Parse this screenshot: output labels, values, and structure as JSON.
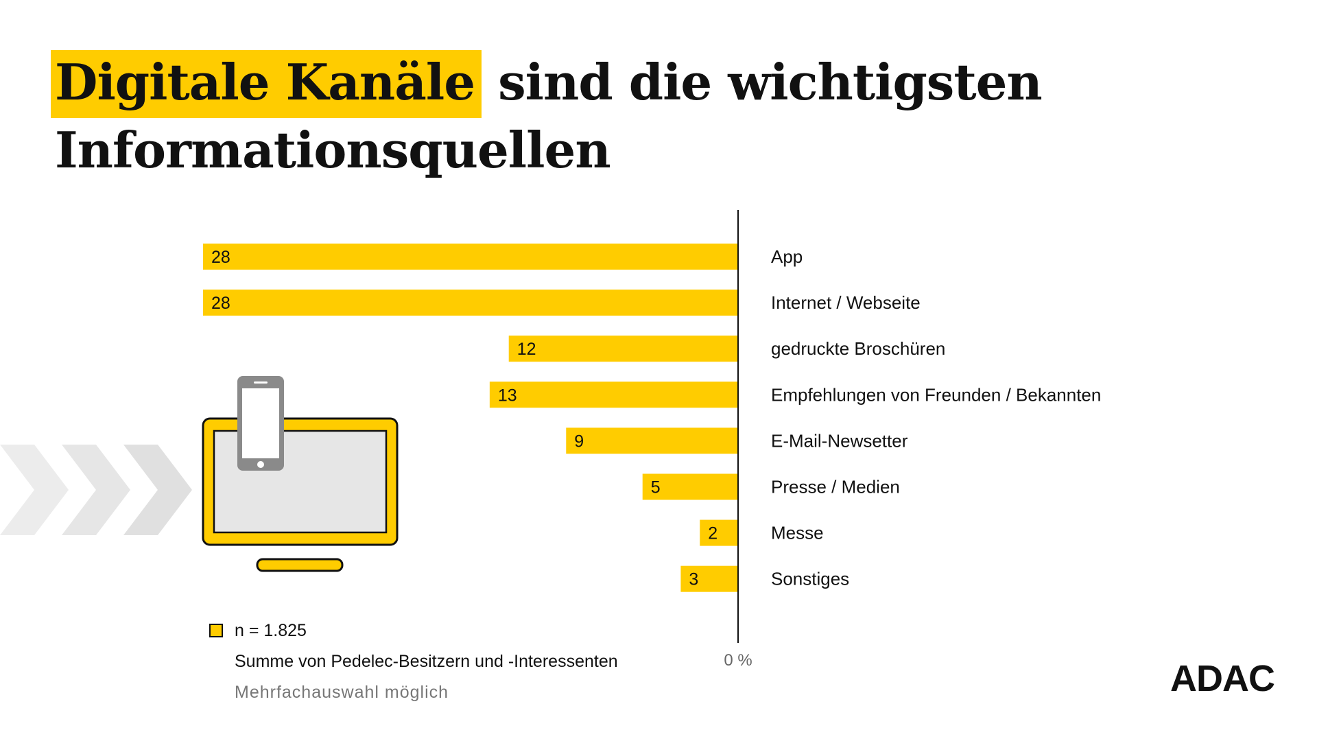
{
  "title": {
    "highlight": "Digitale Kanäle",
    "rest_line1": "sind die wichtigsten",
    "line2": "Informationsquellen"
  },
  "chart_data": {
    "type": "bar",
    "orientation": "horizontal",
    "categories": [
      "App",
      "Internet / Webseite",
      "gedruckte Broschüren",
      "Empfehlungen von Freunden / Bekannten",
      "E-Mail-Newsetter",
      "Presse / Medien",
      "Messe",
      "Sonstiges"
    ],
    "values": [
      28,
      28,
      12,
      13,
      9,
      5,
      2,
      3
    ],
    "axis_label": "0 %",
    "xlim": [
      0,
      28
    ],
    "bar_color": "#ffcc00",
    "legend": {
      "n": "n = 1.825",
      "note": "Summe von Pedelec-Besitzern und -Interessenten",
      "multi": "Mehrfachauswahl möglich"
    }
  },
  "brand": {
    "logo": "ADAC",
    "accent_color": "#ffcc00"
  },
  "illustration": {
    "icons": [
      "chevron-arrows-icon",
      "monitor-icon",
      "smartphone-icon"
    ]
  }
}
